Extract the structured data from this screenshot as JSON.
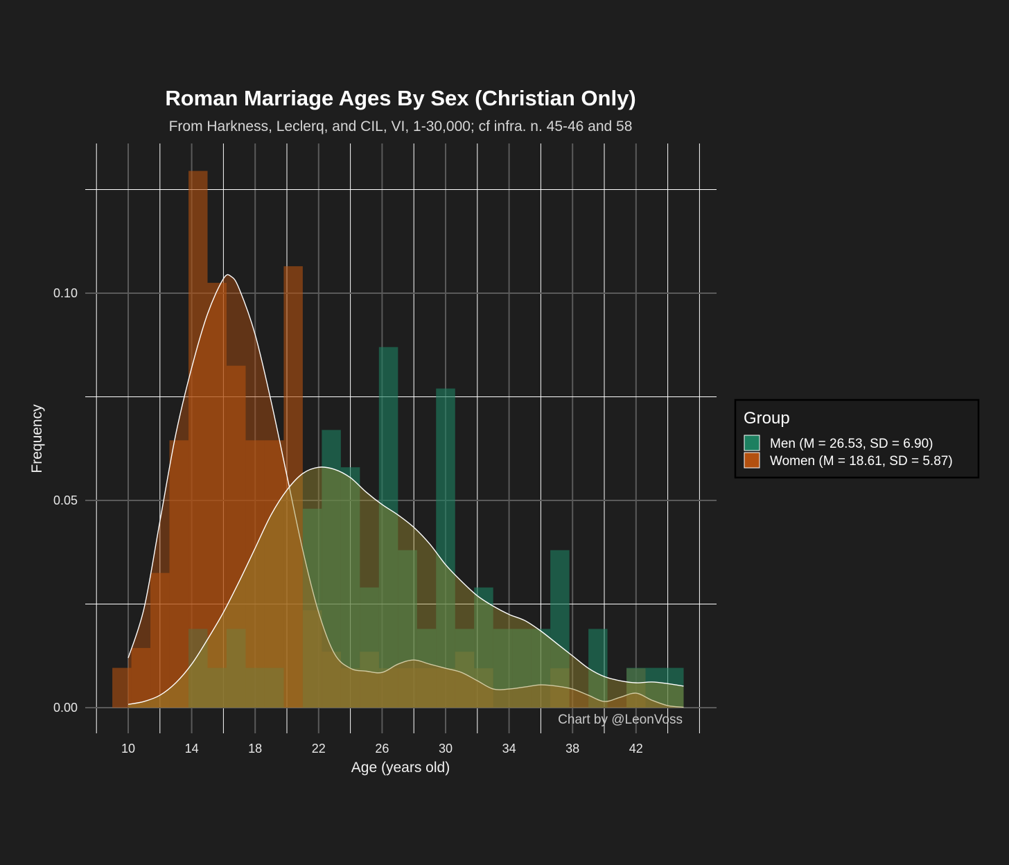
{
  "chart_data": {
    "type": "histogram",
    "title": "Roman Marriage Ages By Sex (Christian Only)",
    "subtitle": "From Harkness, Leclerq, and CIL, VI, 1-30,000; cf infra. n. 45-46 and 58",
    "xlabel": "Age (years old)",
    "ylabel": "Frequency",
    "caption": "Chart by @LeonVoss",
    "xlim": [
      8,
      46
    ],
    "ylim": [
      0,
      0.13
    ],
    "x_ticks": [
      "10",
      "14",
      "18",
      "22",
      "26",
      "30",
      "34",
      "38",
      "42"
    ],
    "y_ticks": [
      "0.00",
      "0.05",
      "0.10"
    ],
    "bin_width": 1.2,
    "grid": true,
    "legend": {
      "title": "Group",
      "position": "right",
      "entries": [
        {
          "label": "Men (M = 26.53, SD = 6.90)",
          "color": "#1d8060"
        },
        {
          "label": "Women (M = 18.61, SD = 5.87)",
          "color": "#b3500f"
        }
      ]
    },
    "series": [
      {
        "name": "Men",
        "color": "#1d8060",
        "bin_starts": [
          12.2,
          13.4,
          14.6,
          15.8,
          17.0,
          18.2,
          19.4,
          20.6,
          21.8,
          23.0,
          24.2,
          25.4,
          26.6,
          27.8,
          29.0,
          30.2,
          31.4,
          32.6,
          33.8,
          35.0,
          36.2,
          37.4,
          38.6,
          39.8,
          41.0,
          42.2,
          43.4
        ],
        "values": [
          0.0,
          0.0,
          0.019,
          0.0,
          0.0,
          0.0,
          0.0,
          0.0,
          0.048,
          0.067,
          0.058,
          0.029,
          0.087,
          0.038,
          0.019,
          0.077,
          0.019,
          0.029,
          0.019,
          0.019,
          0.019,
          0.038,
          0.0,
          0.019,
          0.0,
          0.0,
          0.0
        ]
      },
      {
        "name": "Women",
        "color": "#b3500f",
        "bin_starts": [
          9.8,
          11.0,
          12.2,
          13.4,
          14.6,
          15.8,
          17.0,
          18.2,
          19.4,
          20.6,
          21.8,
          23.0,
          24.2,
          25.4,
          26.6,
          27.8,
          29.0,
          30.2,
          31.4,
          32.6,
          33.8,
          35.0,
          36.2,
          37.4,
          38.6,
          39.8,
          41.0,
          42.2,
          43.4
        ],
        "values": [
          0.0,
          0.0,
          0.0,
          0.0,
          0.0,
          0.0,
          0.0,
          0.0,
          0.0,
          0.0,
          0.0,
          0.0,
          0.0,
          0.0,
          0.0,
          0.0,
          0.0,
          0.0,
          0.0,
          0.0,
          0.0,
          0.0,
          0.0,
          0.0,
          0.0,
          0.0,
          0.0,
          0.0,
          0.0
        ]
      }
    ],
    "overlap_bars": {
      "note_values_women": [
        0.0,
        0.0,
        0.0,
        0.0,
        0.0
      ]
    },
    "women_bins": {
      "bin_starts": [
        9.0,
        10.2,
        11.4,
        12.6,
        13.8,
        15.0,
        16.2,
        17.4,
        18.6,
        19.8,
        21.0,
        22.2,
        23.4,
        24.6,
        25.8,
        27.0,
        28.2,
        29.4,
        30.6,
        31.8,
        33.0,
        34.2,
        35.4,
        36.6,
        37.8,
        39.0,
        40.2,
        41.4,
        42.6
      ],
      "values": [
        0.0096,
        0.0144,
        0.0325,
        0.0645,
        0.1295,
        0.1025,
        0.0825,
        0.0645,
        0.0645,
        0.1065,
        0.0235,
        0.0135,
        0.0095,
        0.0135,
        0.0095,
        0.0095,
        0.0095,
        0.0095,
        0.0135,
        0.0095,
        0.0,
        0.0,
        0.0,
        0.0095,
        0.0,
        0.0,
        0.0,
        0.0095,
        0.0
      ]
    },
    "men_bins": {
      "bin_starts": [
        13.8,
        15.0,
        16.2,
        17.4,
        18.6,
        19.8,
        21.0,
        22.2,
        23.4,
        24.6,
        25.8,
        27.0,
        28.2,
        29.4,
        30.6,
        31.8,
        33.0,
        34.2,
        35.4,
        36.6,
        37.8,
        39.0,
        40.2,
        41.4,
        42.6,
        43.8
      ],
      "values": [
        0.019,
        0.0096,
        0.019,
        0.0096,
        0.0096,
        0.0,
        0.048,
        0.067,
        0.058,
        0.029,
        0.087,
        0.038,
        0.019,
        0.077,
        0.019,
        0.029,
        0.019,
        0.019,
        0.019,
        0.038,
        0.0,
        0.019,
        0.0,
        0.0096,
        0.0096,
        0.0096
      ]
    },
    "density": {
      "Women": {
        "x": [
          10,
          11,
          12,
          13,
          14,
          15,
          16,
          16.5,
          17,
          18,
          19,
          20,
          21,
          22,
          23,
          24,
          25,
          26,
          27,
          28,
          29,
          30,
          31,
          32,
          33,
          34,
          35,
          36,
          37,
          38,
          39,
          40,
          41,
          42,
          43,
          44,
          45
        ],
        "y": [
          0.012,
          0.024,
          0.045,
          0.066,
          0.082,
          0.095,
          0.1035,
          0.104,
          0.101,
          0.09,
          0.074,
          0.056,
          0.038,
          0.023,
          0.013,
          0.0095,
          0.0088,
          0.0085,
          0.0105,
          0.0115,
          0.0105,
          0.0095,
          0.0085,
          0.0065,
          0.0045,
          0.0045,
          0.005,
          0.0055,
          0.0052,
          0.0045,
          0.003,
          0.0015,
          0.0025,
          0.0035,
          0.0018,
          0.0005,
          0.0001
        ]
      },
      "Men": {
        "x": [
          10,
          11,
          12,
          13,
          14,
          15,
          16,
          17,
          18,
          19,
          20,
          21,
          22,
          23,
          24,
          25,
          26,
          27,
          28,
          29,
          30,
          31,
          32,
          33,
          34,
          35,
          36,
          37,
          38,
          39,
          40,
          41,
          42,
          43,
          44,
          45
        ],
        "y": [
          0.0008,
          0.0015,
          0.003,
          0.006,
          0.0105,
          0.0165,
          0.023,
          0.0305,
          0.0385,
          0.0465,
          0.0525,
          0.0565,
          0.058,
          0.0575,
          0.0555,
          0.052,
          0.049,
          0.0465,
          0.0435,
          0.0395,
          0.0345,
          0.0305,
          0.027,
          0.0245,
          0.0225,
          0.021,
          0.0185,
          0.0155,
          0.0125,
          0.0095,
          0.0075,
          0.0065,
          0.006,
          0.0062,
          0.0058,
          0.0052
        ]
      }
    }
  }
}
